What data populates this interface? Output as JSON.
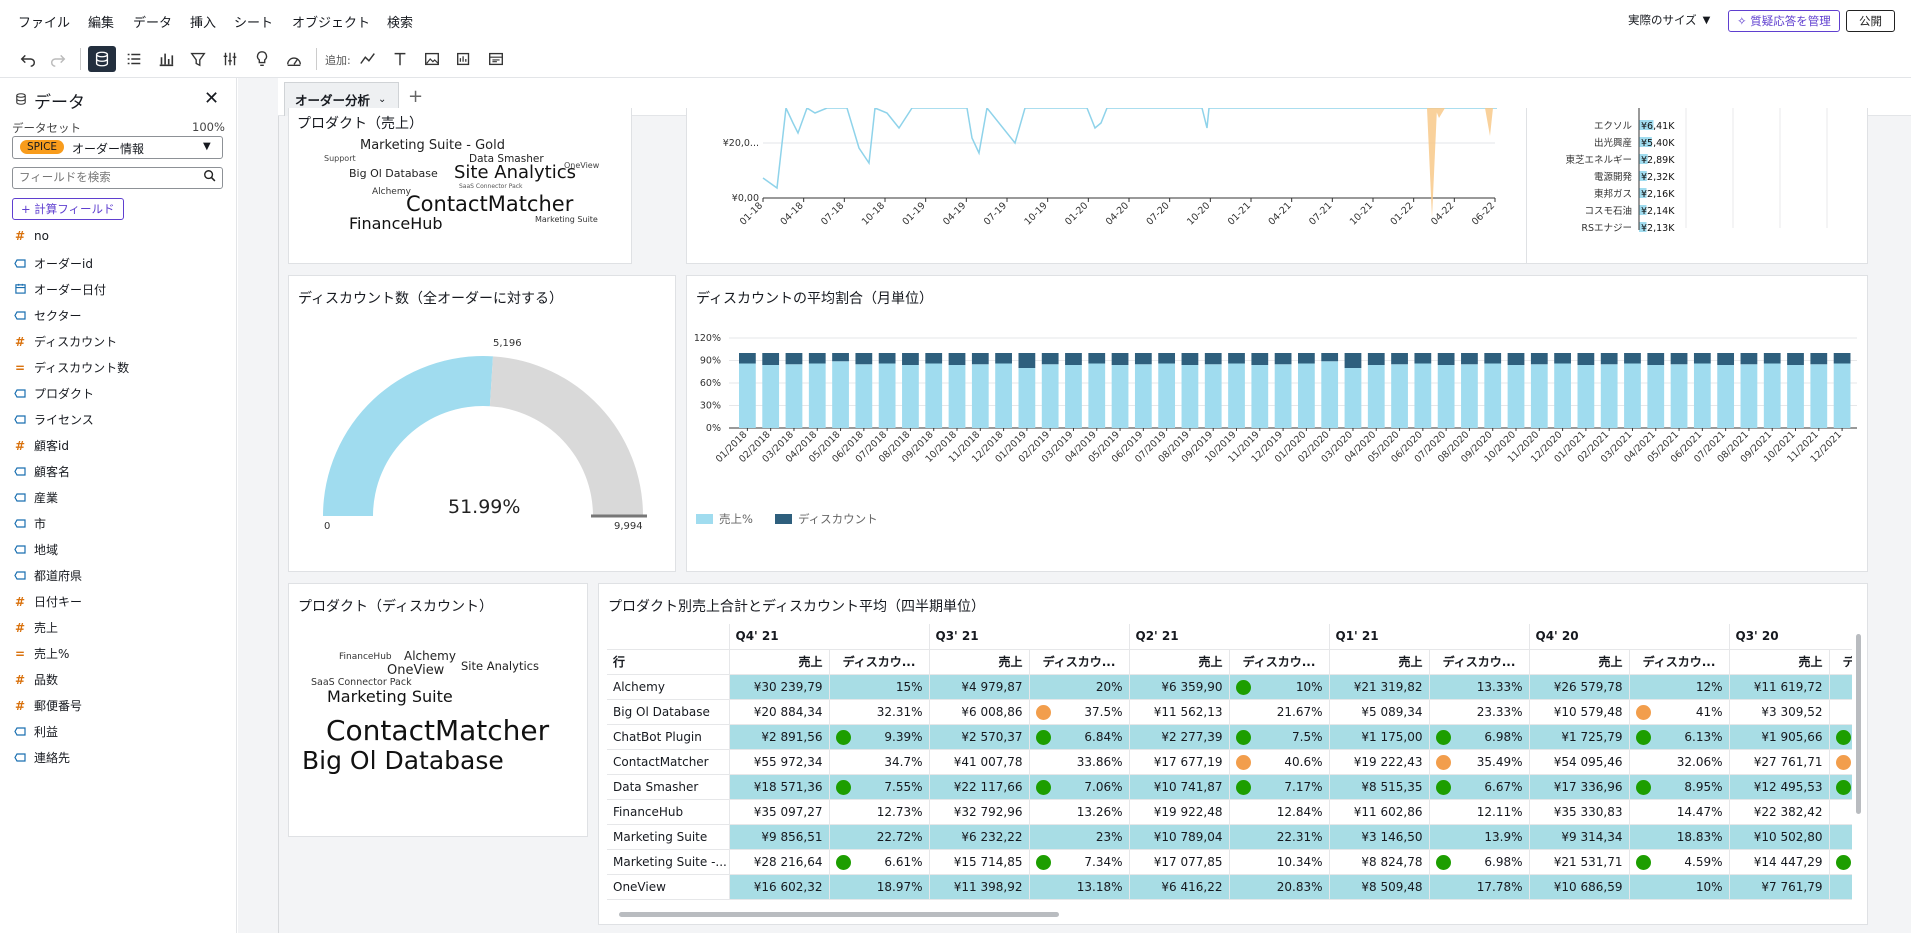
{
  "menu": {
    "items": [
      "ファイル",
      "編集",
      "データ",
      "挿入",
      "シート",
      "オブジェクト",
      "検索"
    ]
  },
  "topright": {
    "size_label": "実際のサイズ",
    "qa_button": "質疑応答を管理",
    "publish_button": "公開"
  },
  "toolbar": {
    "add_label": "追加:"
  },
  "data_panel": {
    "title": "データ",
    "dataset_label": "データセット",
    "dataset_percent": "100%",
    "spice_badge": "SPICE",
    "dataset_name": "オーダー情報",
    "search_placeholder": "フィールドを検索",
    "calc_button": "+ 計算フィールド",
    "fields": [
      {
        "type": "#",
        "name": "no"
      },
      {
        "type": "abc",
        "name": "オーダーid"
      },
      {
        "type": "cal",
        "name": "オーダー日付"
      },
      {
        "type": "abc",
        "name": "セクター"
      },
      {
        "type": "#",
        "name": "ディスカウント"
      },
      {
        "type": "=",
        "name": "ディスカウント数"
      },
      {
        "type": "abc",
        "name": "プロダクト"
      },
      {
        "type": "abc",
        "name": "ライセンス"
      },
      {
        "type": "#",
        "name": "顧客id"
      },
      {
        "type": "abc",
        "name": "顧客名"
      },
      {
        "type": "abc",
        "name": "産業"
      },
      {
        "type": "abc",
        "name": "市"
      },
      {
        "type": "abc",
        "name": "地域"
      },
      {
        "type": "abc",
        "name": "都道府県"
      },
      {
        "type": "#",
        "name": "日付キー"
      },
      {
        "type": "#",
        "name": "売上"
      },
      {
        "type": "=",
        "name": "売上%"
      },
      {
        "type": "#",
        "name": "品数"
      },
      {
        "type": "#",
        "name": "郵便番号"
      },
      {
        "type": "abc",
        "name": "利益"
      },
      {
        "type": "abc",
        "name": "連絡先"
      }
    ]
  },
  "sheet_tab": {
    "label": "オーダー分析"
  },
  "colors": {
    "accent": "#5f3fcf",
    "spice": "#f89c1c",
    "light_blue": "#a0dcef",
    "dark_blue": "#2e5f7d",
    "orange": "#f29e4c",
    "green": "#1d9e00",
    "teal_row": "#a8dde5",
    "gauge_grey": "#d9d9d9"
  },
  "wordcloud_sales": {
    "title": "プロダクト（売上）",
    "words": [
      "Marketing Suite - Gold",
      "Support",
      "Data Smasher",
      "OneView",
      "Big Ol Database",
      "Site Analytics",
      "Alchemy",
      "SaaS Connector Pack",
      "ContactMatcher",
      "FinanceHub",
      "Marketing Suite"
    ]
  },
  "line_chart": {
    "y_ticks": [
      "¥20,0...",
      "¥0,00"
    ],
    "x_ticks": [
      "01-18",
      "04-18",
      "07-18",
      "10-18",
      "01-19",
      "04-19",
      "07-19",
      "10-19",
      "01-20",
      "04-20",
      "07-20",
      "10-20",
      "01-21",
      "04-21",
      "07-21",
      "10-21",
      "01-22",
      "04-22",
      "06-22"
    ]
  },
  "hbar_chart": {
    "rows": [
      {
        "label": "エクソル",
        "value_label": "¥6,41K",
        "value": 6.41
      },
      {
        "label": "出光興産",
        "value_label": "¥5,40K",
        "value": 5.4
      },
      {
        "label": "東芝エネルギー",
        "value_label": "¥2,89K",
        "value": 2.89
      },
      {
        "label": "電源開発",
        "value_label": "¥2,32K",
        "value": 2.32
      },
      {
        "label": "東邦ガス",
        "value_label": "¥2,16K",
        "value": 2.16
      },
      {
        "label": "コスモ石油",
        "value_label": "¥2,14K",
        "value": 2.14
      },
      {
        "label": "RSエナジー",
        "value_label": "¥2,13K",
        "value": 2.13
      }
    ]
  },
  "gauge": {
    "title": "ディスカウント数（全オーダーに対する）",
    "value": 5196,
    "min": 0,
    "max": 9994,
    "value_label": "5,196",
    "min_label": "0",
    "max_label": "9,994",
    "percent_label": "51.99%"
  },
  "chart_data": {
    "type": "bar",
    "title": "ディスカウントの平均割合（月単位）",
    "ylim": [
      0,
      120
    ],
    "y_ticks": [
      "120%",
      "90%",
      "60%",
      "30%",
      "0%"
    ],
    "categories": [
      "01/2018",
      "02/2018",
      "03/2018",
      "04/2018",
      "05/2018",
      "06/2018",
      "07/2018",
      "08/2018",
      "09/2018",
      "10/2018",
      "11/2018",
      "12/2018",
      "01/2019",
      "02/2019",
      "03/2019",
      "04/2019",
      "05/2019",
      "06/2019",
      "07/2019",
      "08/2019",
      "09/2019",
      "10/2019",
      "11/2019",
      "12/2019",
      "01/2020",
      "02/2020",
      "03/2020",
      "04/2020",
      "05/2020",
      "06/2020",
      "07/2020",
      "08/2020",
      "09/2020",
      "10/2020",
      "11/2020",
      "12/2020",
      "01/2021",
      "02/2021",
      "03/2021",
      "04/2021",
      "05/2021",
      "06/2021",
      "07/2021",
      "08/2021",
      "09/2021",
      "10/2021",
      "11/2021",
      "12/2021"
    ],
    "series": [
      {
        "name": "売上%",
        "values": [
          86,
          84,
          85,
          86,
          89,
          85,
          86,
          84,
          86,
          84,
          85,
          86,
          80,
          85,
          84,
          86,
          84,
          85,
          86,
          84,
          85,
          86,
          84,
          85,
          86,
          89,
          80,
          84,
          85,
          86,
          84,
          85,
          86,
          84,
          85,
          86,
          84,
          85,
          86,
          84,
          85,
          86,
          84,
          85,
          86,
          84,
          85,
          86
        ]
      },
      {
        "name": "ディスカウント",
        "values": [
          14,
          16,
          15,
          14,
          11,
          15,
          14,
          16,
          14,
          16,
          15,
          14,
          20,
          15,
          16,
          14,
          16,
          15,
          14,
          16,
          15,
          14,
          16,
          15,
          14,
          11,
          20,
          16,
          15,
          14,
          16,
          15,
          14,
          16,
          15,
          14,
          16,
          15,
          14,
          16,
          15,
          14,
          16,
          15,
          14,
          16,
          15,
          14
        ]
      }
    ],
    "legend": "bottom-left"
  },
  "wordcloud_discount": {
    "title": "プロダクト（ディスカウント）",
    "words": [
      "FinanceHub",
      "Alchemy",
      "OneView",
      "Site Analytics",
      "SaaS Connector Pack",
      "Marketing Suite",
      "ContactMatcher",
      "Big Ol Database"
    ]
  },
  "pivot": {
    "title": "プロダクト別売上合計とディスカウント平均（四半期単位）",
    "row_header": "行",
    "quarters": [
      "Q4' 21",
      "Q3' 21",
      "Q2' 21",
      "Q1' 21",
      "Q4' 20",
      "Q3' 20"
    ],
    "sub_headers": [
      "売上",
      "ディスカウ..."
    ],
    "rows": [
      {
        "name": "Alchemy",
        "cells": [
          [
            "¥30 239,79",
            "",
            "15%"
          ],
          [
            "¥4 979,87",
            "",
            "20%"
          ],
          [
            "¥6 359,90",
            "green",
            "10%"
          ],
          [
            "¥21 319,82",
            "",
            "13.33%"
          ],
          [
            "¥26 579,78",
            "",
            "12%"
          ],
          [
            "¥11 619,72",
            ""
          ]
        ]
      },
      {
        "name": "Big Ol Database",
        "cells": [
          [
            "¥20 884,34",
            "",
            "32.31%"
          ],
          [
            "¥6 008,86",
            "orange",
            "37.5%"
          ],
          [
            "¥11 562,13",
            "",
            "21.67%"
          ],
          [
            "¥5 089,34",
            "",
            "23.33%"
          ],
          [
            "¥10 579,48",
            "orange",
            "41%"
          ],
          [
            "¥3 309,52",
            ""
          ]
        ]
      },
      {
        "name": "ChatBot Plugin",
        "cells": [
          [
            "¥2 891,56",
            "green",
            "9.39%"
          ],
          [
            "¥2 570,37",
            "green",
            "6.84%"
          ],
          [
            "¥2 277,39",
            "green",
            "7.5%"
          ],
          [
            "¥1 175,00",
            "green",
            "6.98%"
          ],
          [
            "¥1 725,79",
            "green",
            "6.13%"
          ],
          [
            "¥1 905,66",
            "green"
          ]
        ]
      },
      {
        "name": "ContactMatcher",
        "cells": [
          [
            "¥55 972,34",
            "",
            "34.7%"
          ],
          [
            "¥41 007,78",
            "",
            "33.86%"
          ],
          [
            "¥17 677,19",
            "orange",
            "40.6%"
          ],
          [
            "¥19 222,43",
            "orange",
            "35.49%"
          ],
          [
            "¥54 095,46",
            "",
            "32.06%"
          ],
          [
            "¥27 761,71",
            "orange"
          ]
        ]
      },
      {
        "name": "Data Smasher",
        "cells": [
          [
            "¥18 571,36",
            "green",
            "7.55%"
          ],
          [
            "¥22 117,66",
            "green",
            "7.06%"
          ],
          [
            "¥10 741,87",
            "green",
            "7.17%"
          ],
          [
            "¥8 515,35",
            "green",
            "6.67%"
          ],
          [
            "¥17 336,96",
            "green",
            "8.95%"
          ],
          [
            "¥12 495,53",
            "green"
          ]
        ]
      },
      {
        "name": "FinanceHub",
        "cells": [
          [
            "¥35 097,27",
            "",
            "12.73%"
          ],
          [
            "¥32 792,96",
            "",
            "13.26%"
          ],
          [
            "¥19 922,48",
            "",
            "12.84%"
          ],
          [
            "¥11 602,86",
            "",
            "12.11%"
          ],
          [
            "¥35 330,83",
            "",
            "14.47%"
          ],
          [
            "¥22 382,42",
            ""
          ]
        ]
      },
      {
        "name": "Marketing Suite",
        "cells": [
          [
            "¥9 856,51",
            "",
            "22.72%"
          ],
          [
            "¥6 232,22",
            "",
            "23%"
          ],
          [
            "¥10 789,04",
            "",
            "22.31%"
          ],
          [
            "¥3 146,50",
            "",
            "13.9%"
          ],
          [
            "¥9 314,34",
            "",
            "18.83%"
          ],
          [
            "¥10 502,80",
            ""
          ]
        ]
      },
      {
        "name": "Marketing Suite -...",
        "cells": [
          [
            "¥28 216,64",
            "green",
            "6.61%"
          ],
          [
            "¥15 714,85",
            "green",
            "7.34%"
          ],
          [
            "¥17 077,85",
            "",
            "10.34%"
          ],
          [
            "¥8 824,78",
            "green",
            "6.98%"
          ],
          [
            "¥21 531,71",
            "green",
            "4.59%"
          ],
          [
            "¥14 447,29",
            "green"
          ]
        ]
      },
      {
        "name": "OneView",
        "cells": [
          [
            "¥16 602,32",
            "",
            "18.97%"
          ],
          [
            "¥11 398,92",
            "",
            "13.18%"
          ],
          [
            "¥6 416,22",
            "",
            "20.83%"
          ],
          [
            "¥8 509,48",
            "",
            "17.78%"
          ],
          [
            "¥10 686,59",
            "",
            "10%"
          ],
          [
            "¥7 761,79",
            ""
          ]
        ]
      }
    ]
  }
}
